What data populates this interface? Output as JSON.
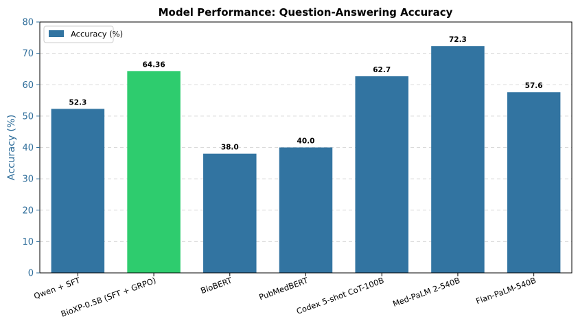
{
  "chart_data": {
    "type": "bar",
    "title": "Model Performance: Question-Answering Accuracy",
    "xlabel": "",
    "ylabel": "Accuracy (%)",
    "ylim": [
      0,
      80
    ],
    "yticks": [
      "0",
      "10",
      "20",
      "30",
      "40",
      "50",
      "60",
      "70",
      "80"
    ],
    "categories": [
      "Qwen + SFT",
      "BioXP-0.5B (SFT + GRPO)",
      "BioBERT",
      "PubMedBERT",
      "Codex 5-shot CoT-100B",
      "Med-PaLM 2-540B",
      "Flan-PaLM-540B"
    ],
    "values": [
      52.3,
      64.36,
      38.0,
      40.0,
      62.7,
      72.3,
      57.6
    ],
    "value_labels": [
      "52.3",
      "64.36",
      "38.0",
      "40.0",
      "62.7",
      "72.3",
      "57.6"
    ],
    "series": [
      {
        "name": "Accuracy (%)",
        "values": [
          52.3,
          64.36,
          38.0,
          40.0,
          62.7,
          72.3,
          57.6
        ]
      }
    ],
    "legend": {
      "label": "Accuracy (%)",
      "placement": "top-left"
    },
    "grid": "y-dashed",
    "colors": {
      "default_bar": "#3274a1",
      "highlight_bar": "#2ecc6e",
      "axis_accent": "#2e6d9a",
      "grid": "#d9d9d9"
    },
    "highlight_index": 1
  }
}
